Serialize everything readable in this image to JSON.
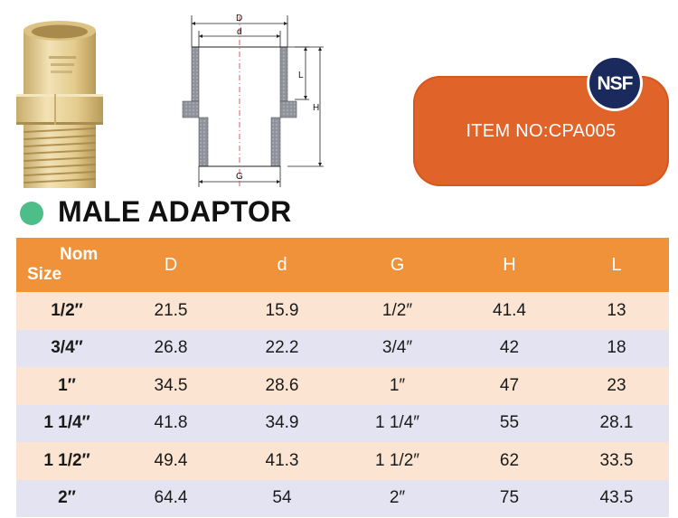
{
  "badge": {
    "item_no": "ITEM NO:CPA005",
    "logo_text": "NSF"
  },
  "title": "MALE ADAPTOR",
  "drawing": {
    "label_D": "D",
    "label_d": "d",
    "label_G": "G",
    "label_L": "L",
    "label_H": "H"
  },
  "table": {
    "headers": {
      "nom_line1": "Nom",
      "nom_line2": "Size",
      "D": "D",
      "d": "d",
      "G": "G",
      "H": "H",
      "L": "L"
    },
    "rows": [
      {
        "size": "1/2″",
        "D": "21.5",
        "d": "15.9",
        "G": "1/2″",
        "H": "41.4",
        "L": "13"
      },
      {
        "size": "3/4″",
        "D": "26.8",
        "d": "22.2",
        "G": "3/4″",
        "H": "42",
        "L": "18"
      },
      {
        "size": "1″",
        "D": "34.5",
        "d": "28.6",
        "G": "1″",
        "H": "47",
        "L": "23"
      },
      {
        "size": "1 1/4″",
        "D": "41.8",
        "d": "34.9",
        "G": "1 1/4″",
        "H": "55",
        "L": "28.1"
      },
      {
        "size": "1 1/2″",
        "D": "49.4",
        "d": "41.3",
        "G": "1 1/2″",
        "H": "62",
        "L": "33.5"
      },
      {
        "size": "2″",
        "D": "64.4",
        "d": "54",
        "G": "2″",
        "H": "75",
        "L": "43.5"
      }
    ]
  },
  "colors": {
    "header_orange": "#ef9239",
    "row_peach": "#fbe4d1",
    "row_lavender": "#e4e3f1",
    "badge_orange": "#e0642a",
    "nsf_navy": "#1b2a5c",
    "dot_green": "#4dbd8a",
    "fitting_cream": "#e8d29a"
  },
  "icons": {
    "title_marker": "green-dot",
    "certification": "nsf-logo"
  }
}
